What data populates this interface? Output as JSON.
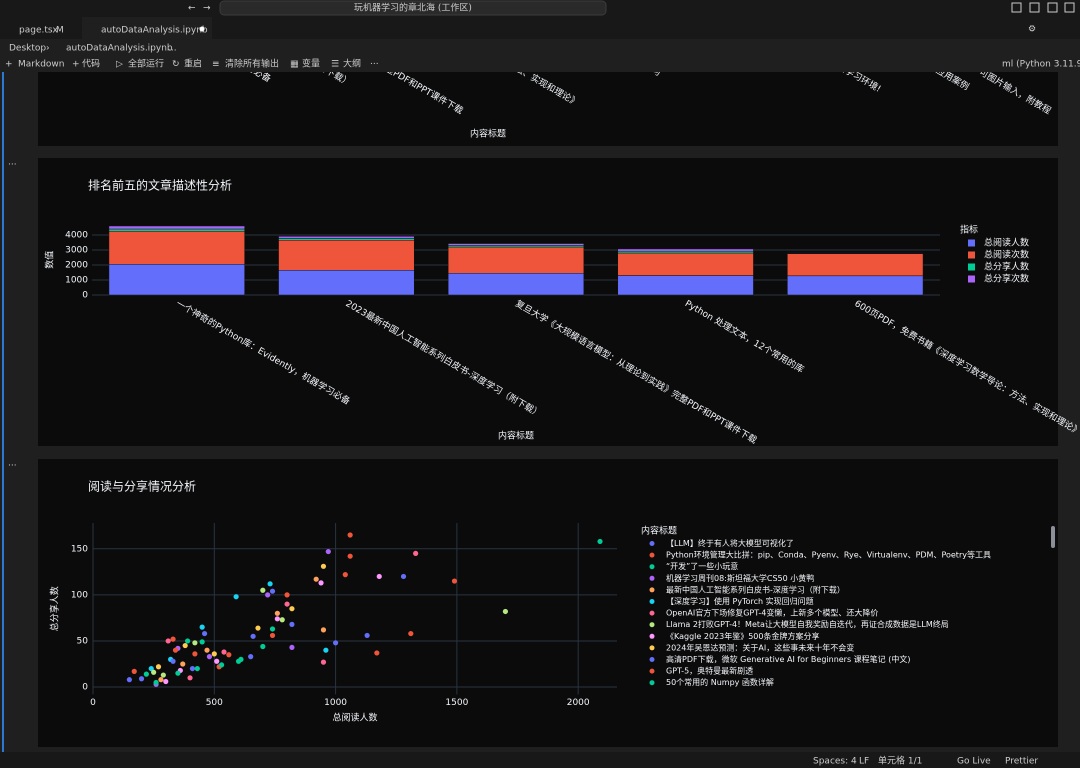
{
  "title_bar": {
    "search": "玩机器学习的章北海 (工作区)"
  },
  "tabs": [
    {
      "label": "page.tsx",
      "status": "M"
    },
    {
      "label": "autoDataAnalysis.ipynb"
    }
  ],
  "breadcrumb": [
    "Desktop",
    "autoDataAnalysis.ipynb",
    "..."
  ],
  "toolbar": {
    "items": [
      "Markdown",
      "代码",
      "全部运行",
      "重启",
      "清除所有输出",
      "变量",
      "大纲",
      "···"
    ],
    "kernel": "ml (Python 3.11.9)"
  },
  "cell_markers": [
    "...",
    "..."
  ],
  "status_bar": [
    "Spaces: 4",
    "LF",
    "单元格 1/1",
    "Go Live",
    "Prettier"
  ],
  "chart_data": [
    {
      "type": "bar",
      "xlabel": "内容标题",
      "categories": [
        "习必备",
        "习（附下载）",
        "》完整PDF和PPT课件下载",
        "：方法、实现和理论》",
        "度学习",
        "度学习环境!",
        "应用案例",
        "，可图片输入，附教程"
      ]
    },
    {
      "type": "bar",
      "title": "排名前五的文章描述性分析",
      "xlabel": "内容标题",
      "ylabel": "数值",
      "stacked": true,
      "grid": true,
      "legend_title": "指标",
      "legend_position": "right",
      "categories": [
        "一个神奇的Python库：Evidently，机器学习必备",
        "2023最新中国人工智能系列白皮书-深度学习（附下载）",
        "复旦大学《大规模语言模型：从理论到实践》完整PDF和PPT课件下载",
        "Python 处理文本，12个常用的库",
        "600页PDF，免费书籍《深度学习数学导论：方法、实现和理论》"
      ],
      "series": [
        {
          "name": "总阅读人数",
          "color": "#636efa",
          "values": [
            2050,
            1650,
            1450,
            1300,
            1280
          ]
        },
        {
          "name": "总阅读次数",
          "color": "#ef553b",
          "values": [
            2200,
            2000,
            1750,
            1500,
            1470
          ]
        },
        {
          "name": "总分享人数",
          "color": "#00cc96",
          "values": [
            150,
            120,
            110,
            120,
            30
          ]
        },
        {
          "name": "总分享次数",
          "color": "#ab63fa",
          "values": [
            200,
            140,
            120,
            150,
            40
          ]
        }
      ],
      "ylim": [
        0,
        4700
      ],
      "yticks": [
        0,
        1000,
        2000,
        3000,
        4000
      ]
    },
    {
      "type": "scatter",
      "title": "阅读与分享情况分析",
      "xlabel": "总阅读人数",
      "ylabel": "总分享人数",
      "grid": true,
      "legend_title": "内容标题",
      "legend_position": "right",
      "xlim": [
        0,
        2160
      ],
      "ylim": [
        -8,
        178
      ],
      "xticks": [
        0,
        500,
        1000,
        1500,
        2000
      ],
      "yticks": [
        0,
        50,
        100,
        150
      ],
      "series": [
        {
          "name": "【LLM】终于有人将大模型可视化了",
          "color": "#636efa",
          "x": [
            150,
            410,
            660,
            820,
            1130,
            1280
          ],
          "values": [
            8,
            20,
            55,
            68,
            56,
            120
          ]
        },
        {
          "name": "Python环境管理大比拼：pip、Conda、Pyenv、Rye、Virtualenv、PDM、Poetry等工具",
          "color": "#ef553b",
          "x": [
            170,
            330,
            560,
            800,
            1060,
            1490,
            1310,
            1040
          ],
          "values": [
            17,
            52,
            35,
            100,
            165,
            115,
            58,
            122
          ]
        },
        {
          "name": "“开发”了一些小玩意",
          "color": "#00cc96",
          "x": [
            220,
            390,
            430,
            610,
            700,
            2090
          ],
          "values": [
            14,
            50,
            20,
            30,
            44,
            158
          ]
        },
        {
          "name": "机器学习周刊08:斯坦福大学CS50 小黄鸭",
          "color": "#ab63fa",
          "x": [
            260,
            350,
            480,
            720,
            970,
            820
          ],
          "values": [
            3,
            42,
            33,
            100,
            147,
            43
          ]
        },
        {
          "name": "最新中国人工智能系列白皮书-深度学习（附下载）",
          "color": "#ffa15a",
          "x": [
            280,
            370,
            470,
            760,
            920,
            950
          ],
          "values": [
            8,
            25,
            40,
            80,
            117,
            62
          ]
        },
        {
          "name": "【深度学习】使用 PyTorch 实现回归问题",
          "color": "#19d3f3",
          "x": [
            240,
            320,
            450,
            590,
            730,
            960
          ],
          "values": [
            20,
            30,
            65,
            98,
            112,
            40
          ]
        },
        {
          "name": "OpenAI官方下场修复GPT-4变懒，上新多个模型、还大降价",
          "color": "#ff6692",
          "x": [
            310,
            400,
            540,
            800,
            1330,
            950
          ],
          "values": [
            50,
            10,
            38,
            90,
            145,
            27
          ]
        },
        {
          "name": "Llama 2打败GPT-4！Meta让大模型自我奖励自迭代，再证合成数据是LLM终局",
          "color": "#b6e880",
          "x": [
            250,
            290,
            420,
            700,
            780,
            1700
          ],
          "values": [
            16,
            13,
            48,
            105,
            73,
            82
          ]
        },
        {
          "name": "《Kaggle 2023年鉴》500条金牌方案分享",
          "color": "#ff97ff",
          "x": [
            300,
            360,
            510,
            760,
            940,
            1180
          ],
          "values": [
            6,
            18,
            28,
            74,
            113,
            120
          ]
        },
        {
          "name": "2024年吴恩达预测：关于AI，这些事未来十年不会变",
          "color": "#fecb52",
          "x": [
            270,
            380,
            500,
            680,
            820,
            950
          ],
          "values": [
            22,
            45,
            36,
            64,
            85,
            131
          ]
        },
        {
          "name": "高清PDF下载，微软 Generative AI for Beginners 课程笔记 (中文)",
          "color": "#636efa",
          "x": [
            200,
            330,
            460,
            650,
            740,
            1000
          ],
          "values": [
            9,
            28,
            58,
            33,
            104,
            48
          ]
        },
        {
          "name": "GPT-5，奥特曼最新剧透",
          "color": "#ef553b",
          "x": [
            340,
            420,
            520,
            740,
            1170,
            1060
          ],
          "values": [
            40,
            36,
            22,
            56,
            37,
            142
          ]
        },
        {
          "name": "50个常用的 Numpy 函数详解",
          "color": "#00cc96",
          "x": [
            260,
            350,
            450,
            530,
            600,
            740
          ],
          "values": [
            5,
            15,
            49,
            24,
            28,
            63
          ]
        }
      ]
    }
  ]
}
